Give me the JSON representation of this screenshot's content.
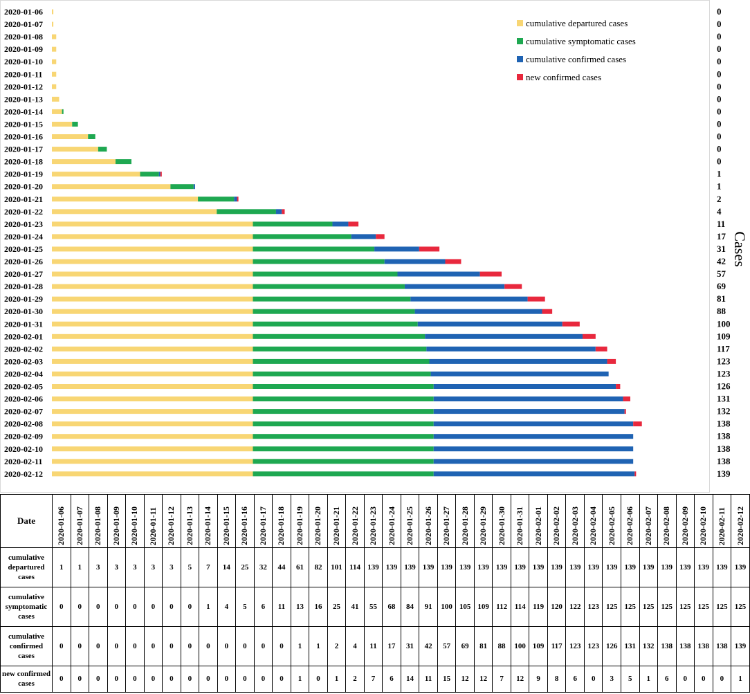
{
  "chart_data": {
    "type": "bar",
    "orientation": "horizontal",
    "stacked": true,
    "ylabel": "Cases",
    "legend_position": "top-right",
    "categories": [
      "2020-01-06",
      "2020-01-07",
      "2020-01-08",
      "2020-01-09",
      "2020-01-10",
      "2020-01-11",
      "2020-01-12",
      "2020-01-13",
      "2020-01-14",
      "2020-01-15",
      "2020-01-16",
      "2020-01-17",
      "2020-01-18",
      "2020-01-19",
      "2020-01-20",
      "2020-01-21",
      "2020-01-22",
      "2020-01-23",
      "2020-01-24",
      "2020-01-25",
      "2020-01-26",
      "2020-01-27",
      "2020-01-28",
      "2020-01-29",
      "2020-01-30",
      "2020-01-31",
      "2020-02-01",
      "2020-02-02",
      "2020-02-03",
      "2020-02-04",
      "2020-02-05",
      "2020-02-06",
      "2020-02-07",
      "2020-02-08",
      "2020-02-09",
      "2020-02-10",
      "2020-02-11",
      "2020-02-12"
    ],
    "series": [
      {
        "name": "cumulative departured cases",
        "color": "#f8d674",
        "values": [
          1,
          1,
          3,
          3,
          3,
          3,
          3,
          5,
          7,
          14,
          25,
          32,
          44,
          61,
          82,
          101,
          114,
          139,
          139,
          139,
          139,
          139,
          139,
          139,
          139,
          139,
          139,
          139,
          139,
          139,
          139,
          139,
          139,
          139,
          139,
          139,
          139,
          139
        ]
      },
      {
        "name": "cumulative symptomatic cases",
        "color": "#1ea851",
        "values": [
          0,
          0,
          0,
          0,
          0,
          0,
          0,
          0,
          1,
          4,
          5,
          6,
          11,
          13,
          16,
          25,
          41,
          55,
          68,
          84,
          91,
          100,
          105,
          109,
          112,
          114,
          119,
          120,
          122,
          123,
          125,
          125,
          125,
          125,
          125,
          125,
          125,
          125
        ]
      },
      {
        "name": "cumulative confirmed cases",
        "color": "#1f63b3",
        "values": [
          0,
          0,
          0,
          0,
          0,
          0,
          0,
          0,
          0,
          0,
          0,
          0,
          0,
          1,
          1,
          2,
          4,
          11,
          17,
          31,
          42,
          57,
          69,
          81,
          88,
          100,
          109,
          117,
          123,
          123,
          126,
          131,
          132,
          138,
          138,
          138,
          138,
          139
        ]
      },
      {
        "name": "new confirmed cases",
        "color": "#e8283d",
        "values": [
          0,
          0,
          0,
          0,
          0,
          0,
          0,
          0,
          0,
          0,
          0,
          0,
          0,
          1,
          0,
          1,
          2,
          7,
          6,
          14,
          11,
          15,
          12,
          12,
          7,
          12,
          9,
          8,
          6,
          0,
          3,
          5,
          1,
          6,
          0,
          0,
          0,
          1
        ]
      }
    ],
    "right_labels": [
      0,
      0,
      0,
      0,
      0,
      0,
      0,
      0,
      0,
      0,
      0,
      0,
      0,
      1,
      1,
      2,
      4,
      11,
      17,
      31,
      42,
      57,
      69,
      81,
      88,
      100,
      109,
      117,
      123,
      123,
      126,
      131,
      132,
      138,
      138,
      138,
      138,
      139
    ]
  },
  "table": {
    "corner_label": "Date",
    "row_labels": [
      "cumulative departured cases",
      "cumulative symptomatic cases",
      "cumulative confirmed cases",
      "new confirmed cases"
    ]
  }
}
